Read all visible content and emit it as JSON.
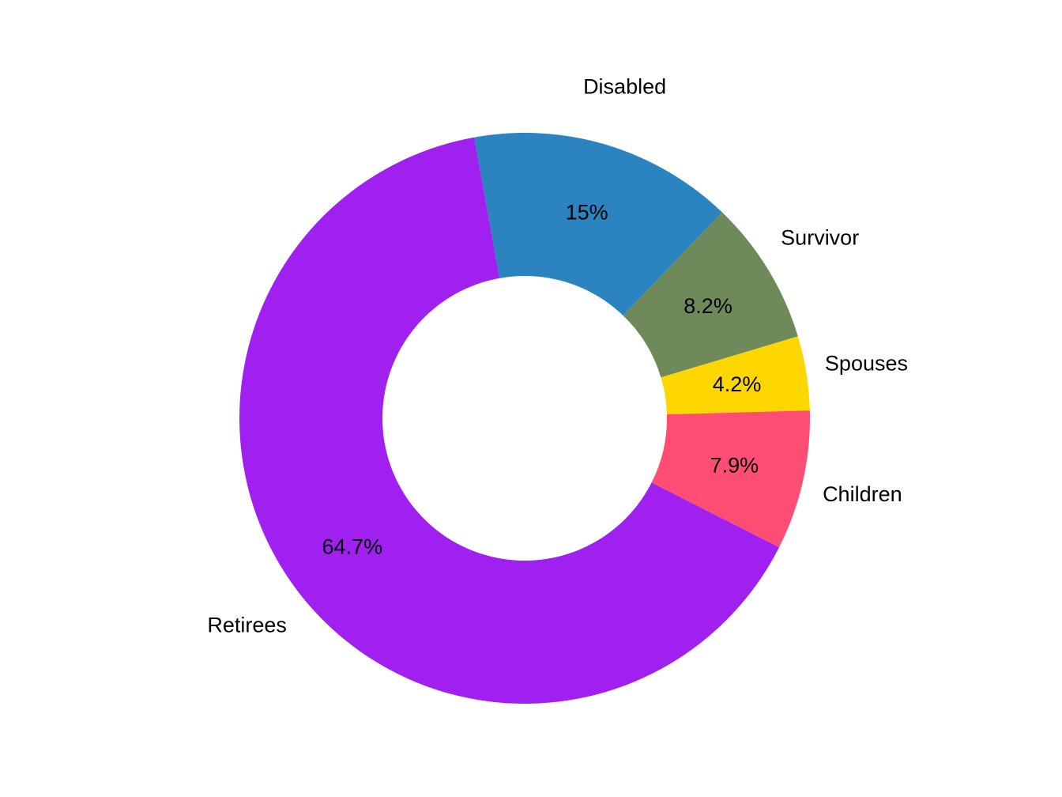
{
  "chart_data": {
    "type": "pie",
    "donut": true,
    "categories": [
      "Disabled",
      "Survivor",
      "Spouses",
      "Children",
      "Retirees"
    ],
    "values": [
      15.0,
      8.2,
      4.2,
      7.9,
      64.7
    ],
    "value_labels": [
      "15%",
      "8.2%",
      "4.2%",
      "7.9%",
      "64.7%"
    ],
    "colors": [
      "#2B83C0",
      "#6E8A5B",
      "#FFD700",
      "#FF4D74",
      "#A020F0"
    ],
    "legend": "none"
  }
}
